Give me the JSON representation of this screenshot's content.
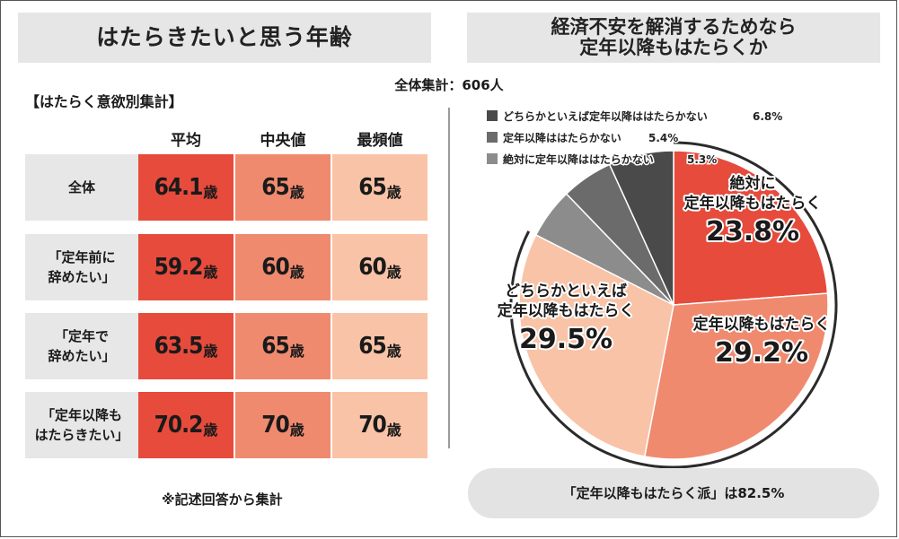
{
  "left_title": "はたらきたいと思う年齢",
  "right_title": [
    "経済不安を解消するためなら",
    "定年以降もはたらくか"
  ],
  "total_count": "全体集計：606人",
  "section_label": "【はたらく意欲別集計】",
  "table": {
    "columns": [
      "平均",
      "中央値",
      "最頻値"
    ],
    "unit": "歳",
    "rows": [
      {
        "label": [
          "全体"
        ],
        "values": [
          "64.1",
          "65",
          "65"
        ]
      },
      {
        "label": [
          "「定年前に",
          "辞めたい」"
        ],
        "values": [
          "59.2",
          "60",
          "60"
        ]
      },
      {
        "label": [
          "「定年で",
          "辞めたい」"
        ],
        "values": [
          "63.5",
          "65",
          "65"
        ]
      },
      {
        "label": [
          "「定年以降も",
          "はたらきたい」"
        ],
        "values": [
          "70.2",
          "70",
          "70"
        ]
      }
    ]
  },
  "footnote": "※記述回答から集計",
  "summary": "「定年以降もはたらく派」は82.5%",
  "chart_data": {
    "type": "pie",
    "unit": "%",
    "slices": [
      {
        "name": "絶対に定年以降もはたらく",
        "label_lines": [
          "絶対に",
          "定年以降もはたらく"
        ],
        "value": 23.8,
        "color": "#e64b3c"
      },
      {
        "name": "定年以降もはたらく",
        "label_lines": [
          "定年以降もはたらく"
        ],
        "value": 29.2,
        "color": "#f08a6f"
      },
      {
        "name": "どちらかといえば定年以降もはたらく",
        "label_lines": [
          "どちらかといえば",
          "定年以降もはたらく"
        ],
        "value": 29.5,
        "color": "#f9c3a7"
      },
      {
        "name": "絶対に定年以降ははたらかない",
        "value": 5.3,
        "color": "#8c8c8c"
      },
      {
        "name": "定年以降ははたらかない",
        "value": 5.4,
        "color": "#6b6b6b"
      },
      {
        "name": "どちらかといえば定年以降ははたらかない",
        "value": 6.8,
        "color": "#4a4a4a"
      }
    ],
    "legend": [
      {
        "text": "どちらかといえば定年以降ははたらかない",
        "value": "6.8%",
        "color": "#4a4a4a"
      },
      {
        "text": "定年以降ははたらかない",
        "value": "5.4%",
        "color": "#6b6b6b"
      },
      {
        "text": "絶対に定年以降ははたらかない",
        "value": "5.3%",
        "color": "#8c8c8c"
      }
    ]
  }
}
